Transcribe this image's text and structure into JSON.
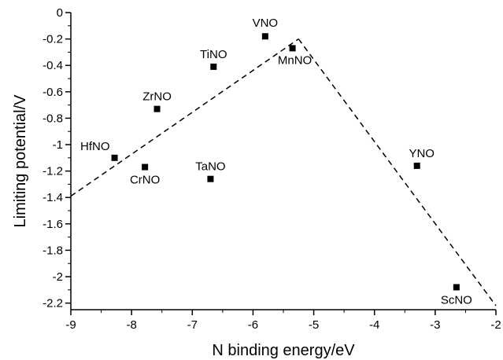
{
  "chart_data": {
    "type": "scatter",
    "xlabel": "N binding energy/eV",
    "ylabel": "Limiting potential/V",
    "xlim": [
      -9,
      -2
    ],
    "ylim": [
      -2.25,
      0
    ],
    "x_ticks": [
      -9,
      -8,
      -7,
      -6,
      -5,
      -4,
      -3,
      -2
    ],
    "x_tick_labels": [
      "-9",
      "-8",
      "-7",
      "-6",
      "-5",
      "-4",
      "-3",
      "-2"
    ],
    "y_ticks": [
      0,
      -0.2,
      -0.4,
      -0.6,
      -0.8,
      -1,
      -1.2,
      -1.4,
      -1.6,
      -1.8,
      -2,
      -2.2
    ],
    "y_tick_labels": [
      "0",
      "-0.2",
      "-0.4",
      "-0.6",
      "-0.8",
      "-1",
      "-1.2",
      "-1.4",
      "-1.6",
      "-1.8",
      "-2",
      "-2.2"
    ],
    "grid": false,
    "points": [
      {
        "label": "VNO",
        "x": -5.8,
        "y": -0.18
      },
      {
        "label": "MnNO",
        "x": -5.35,
        "y": -0.27
      },
      {
        "label": "TiNO",
        "x": -6.65,
        "y": -0.41
      },
      {
        "label": "ZrNO",
        "x": -7.58,
        "y": -0.73
      },
      {
        "label": "HfNO",
        "x": -8.28,
        "y": -1.1
      },
      {
        "label": "CrNO",
        "x": -7.78,
        "y": -1.17
      },
      {
        "label": "TaNO",
        "x": -6.7,
        "y": -1.26
      },
      {
        "label": "YNO",
        "x": -3.3,
        "y": -1.16
      },
      {
        "label": "ScNO",
        "x": -2.65,
        "y": -2.08
      }
    ],
    "trend_lines": [
      {
        "style": "dashed",
        "x": [
          -9,
          -5.25
        ],
        "y": [
          -1.39,
          -0.2
        ]
      },
      {
        "style": "dashed",
        "x": [
          -5.25,
          -2
        ],
        "y": [
          -0.2,
          -2.22
        ]
      }
    ]
  }
}
